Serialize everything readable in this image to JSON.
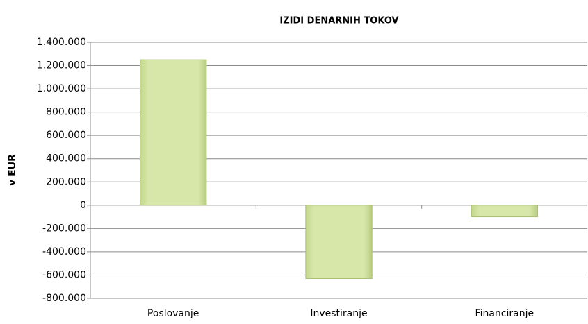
{
  "chart_data": {
    "type": "bar",
    "title": "IZIDI DENARNIH TOKOV",
    "y_label": "v EUR",
    "categories": [
      "Poslovanje",
      "Investiranje",
      "Financiranje"
    ],
    "values": [
      1250000,
      -630000,
      -100000
    ],
    "color": "#d4e3a3",
    "ylim": [
      -800000,
      1400000
    ],
    "yticks": [
      {
        "value": -800000,
        "label": "-800.000"
      },
      {
        "value": -600000,
        "label": "-600.000"
      },
      {
        "value": -400000,
        "label": "-400.000"
      },
      {
        "value": -200000,
        "label": "-200.000"
      },
      0,
      {
        "value": 200000,
        "label": "200.000"
      },
      {
        "value": 400000,
        "label": "400.000"
      },
      {
        "value": 600000,
        "label": "600.000"
      },
      {
        "value": 800000,
        "label": "800.000"
      },
      {
        "value": 1000000,
        "label": "1.000.000"
      },
      {
        "value": 1200000,
        "label": "1.200.000"
      },
      {
        "value": 1400000,
        "label": "1.400.000"
      }
    ],
    "grid": true
  }
}
